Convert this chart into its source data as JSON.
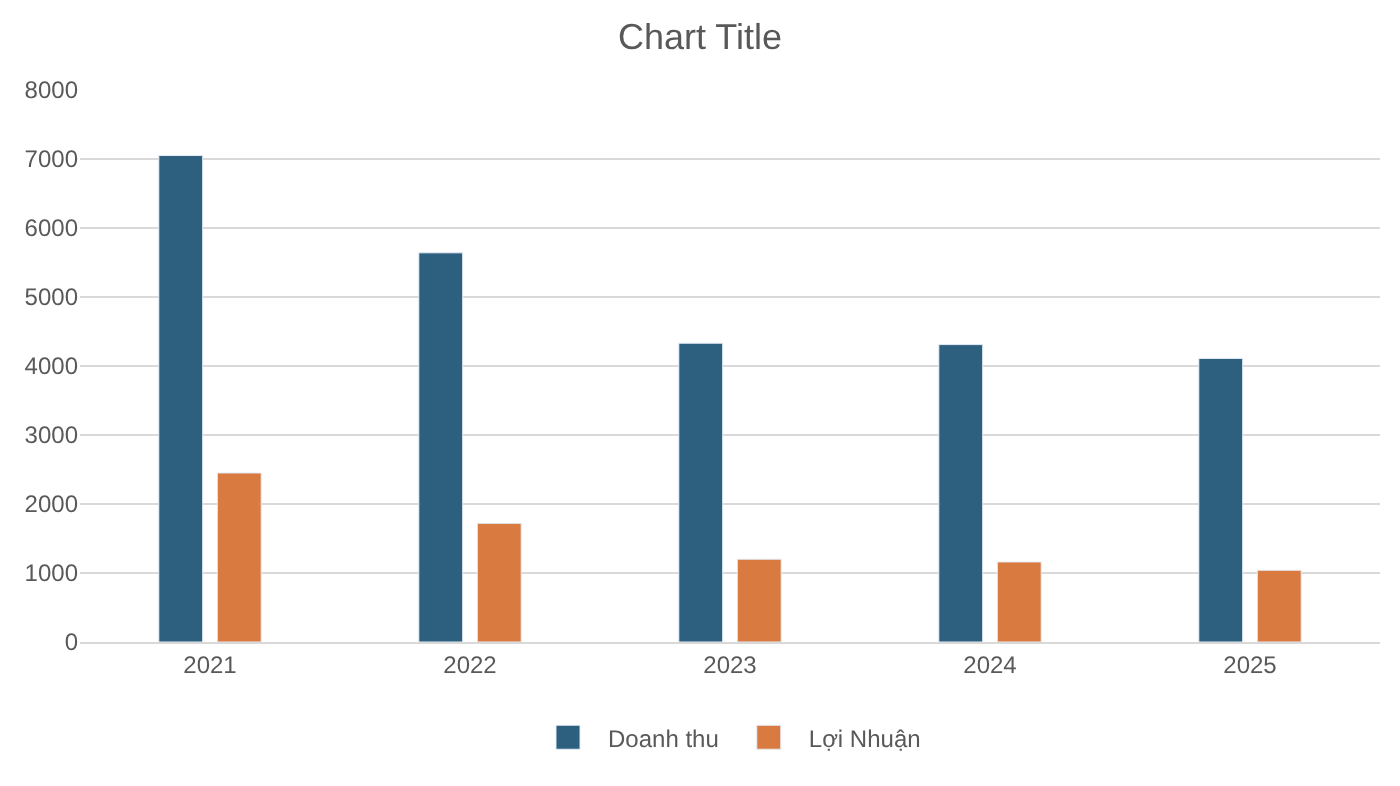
{
  "chart_data": {
    "type": "bar",
    "title": "Chart Title",
    "categories": [
      "2021",
      "2022",
      "2023",
      "2024",
      "2025"
    ],
    "series": [
      {
        "name": "Doanh thu",
        "color": "#2d5f7e",
        "values": [
          7050,
          5640,
          4330,
          4310,
          4110
        ]
      },
      {
        "name": "Lợi Nhuận",
        "color": "#d97a40",
        "values": [
          2450,
          1720,
          1200,
          1160,
          1040
        ]
      }
    ],
    "ylim": [
      0,
      8000
    ],
    "yticks": [
      0,
      1000,
      2000,
      3000,
      4000,
      5000,
      6000,
      7000,
      8000
    ],
    "grid": "y",
    "legend": "bottom"
  }
}
